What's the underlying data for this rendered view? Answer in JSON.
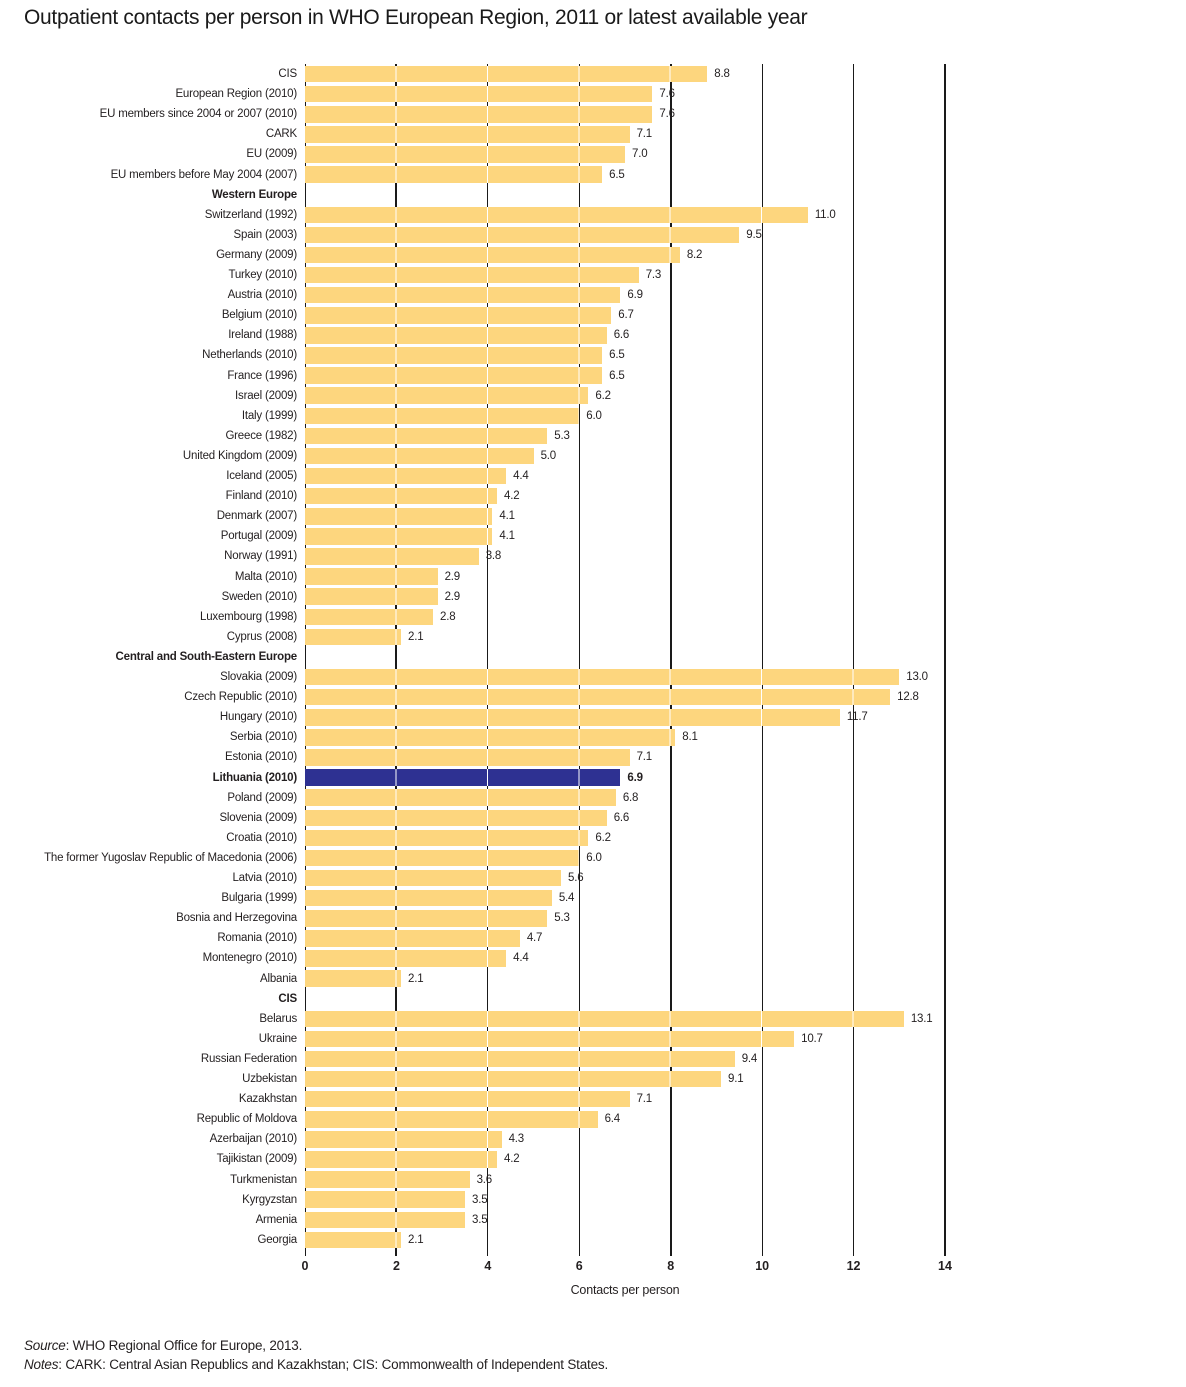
{
  "title": "Outpatient contacts per person in WHO European Region, 2011 or latest available year",
  "footer": {
    "source_prefix": "Source",
    "source_text": ": WHO Regional Office for Europe, 2013.",
    "notes_prefix": "Notes",
    "notes_text": ": CARK: Central Asian Republics and Kazakhstan; CIS: Commonwealth of Independent States."
  },
  "colors": {
    "bar": "#FDD67E",
    "highlight_bar": "#2E3192",
    "gridline": "#1A1A1A",
    "text": "#231F20"
  },
  "chart_data": {
    "type": "bar",
    "orientation": "horizontal",
    "title": "Outpatient contacts per person in WHO European Region, 2011 or latest available year",
    "xlabel": "Contacts per person",
    "xlim": [
      0,
      14
    ],
    "xticks": [
      0,
      2,
      4,
      6,
      8,
      10,
      12,
      14
    ],
    "major_gridlines_at": [
      2,
      8,
      14
    ],
    "grid": true,
    "sections": [
      {
        "header": null,
        "rows": [
          {
            "label": "CIS",
            "value": 8.8
          },
          {
            "label": "European Region (2010)",
            "value": 7.6
          },
          {
            "label": "EU members since 2004 or 2007 (2010)",
            "value": 7.6
          },
          {
            "label": "CARK",
            "value": 7.1
          },
          {
            "label": "EU (2009)",
            "value": 7.0
          },
          {
            "label": "EU members before May 2004 (2007)",
            "value": 6.5
          }
        ]
      },
      {
        "header": "Western Europe",
        "rows": [
          {
            "label": "Switzerland (1992)",
            "value": 11.0
          },
          {
            "label": "Spain (2003)",
            "value": 9.5
          },
          {
            "label": "Germany (2009)",
            "value": 8.2
          },
          {
            "label": "Turkey (2010)",
            "value": 7.3
          },
          {
            "label": "Austria (2010)",
            "value": 6.9
          },
          {
            "label": "Belgium (2010)",
            "value": 6.7
          },
          {
            "label": "Ireland (1988)",
            "value": 6.6
          },
          {
            "label": "Netherlands (2010)",
            "value": 6.5
          },
          {
            "label": "France (1996)",
            "value": 6.5
          },
          {
            "label": "Israel (2009)",
            "value": 6.2
          },
          {
            "label": "Italy (1999)",
            "value": 6.0
          },
          {
            "label": "Greece (1982)",
            "value": 5.3
          },
          {
            "label": "United Kingdom (2009)",
            "value": 5.0
          },
          {
            "label": "Iceland (2005)",
            "value": 4.4
          },
          {
            "label": "Finland (2010)",
            "value": 4.2
          },
          {
            "label": "Denmark (2007)",
            "value": 4.1
          },
          {
            "label": "Portugal (2009)",
            "value": 4.1
          },
          {
            "label": "Norway (1991)",
            "value": 3.8
          },
          {
            "label": "Malta (2010)",
            "value": 2.9
          },
          {
            "label": "Sweden (2010)",
            "value": 2.9
          },
          {
            "label": "Luxembourg (1998)",
            "value": 2.8
          },
          {
            "label": "Cyprus (2008)",
            "value": 2.1
          }
        ]
      },
      {
        "header": "Central and South-Eastern Europe",
        "rows": [
          {
            "label": "Slovakia (2009)",
            "value": 13.0
          },
          {
            "label": "Czech Republic (2010)",
            "value": 12.8
          },
          {
            "label": "Hungary (2010)",
            "value": 11.7
          },
          {
            "label": "Serbia (2010)",
            "value": 8.1
          },
          {
            "label": "Estonia (2010)",
            "value": 7.1
          },
          {
            "label": "Lithuania (2010)",
            "value": 6.9,
            "highlight": true
          },
          {
            "label": "Poland (2009)",
            "value": 6.8
          },
          {
            "label": "Slovenia (2009)",
            "value": 6.6
          },
          {
            "label": "Croatia (2010)",
            "value": 6.2
          },
          {
            "label": "The former Yugoslav Republic of Macedonia (2006)",
            "value": 6.0
          },
          {
            "label": "Latvia (2010)",
            "value": 5.6
          },
          {
            "label": "Bulgaria (1999)",
            "value": 5.4
          },
          {
            "label": "Bosnia and Herzegovina",
            "value": 5.3
          },
          {
            "label": "Romania (2010)",
            "value": 4.7
          },
          {
            "label": "Montenegro (2010)",
            "value": 4.4
          },
          {
            "label": "Albania",
            "value": 2.1
          }
        ]
      },
      {
        "header": "CIS",
        "rows": [
          {
            "label": "Belarus",
            "value": 13.1
          },
          {
            "label": "Ukraine",
            "value": 10.7
          },
          {
            "label": "Russian Federation",
            "value": 9.4
          },
          {
            "label": "Uzbekistan",
            "value": 9.1
          },
          {
            "label": "Kazakhstan",
            "value": 7.1
          },
          {
            "label": "Republic of Moldova",
            "value": 6.4
          },
          {
            "label": "Azerbaijan (2010)",
            "value": 4.3
          },
          {
            "label": "Tajikistan (2009)",
            "value": 4.2
          },
          {
            "label": "Turkmenistan",
            "value": 3.6
          },
          {
            "label": "Kyrgyzstan",
            "value": 3.5
          },
          {
            "label": "Armenia",
            "value": 3.5
          },
          {
            "label": "Georgia",
            "value": 2.1
          }
        ]
      }
    ]
  }
}
